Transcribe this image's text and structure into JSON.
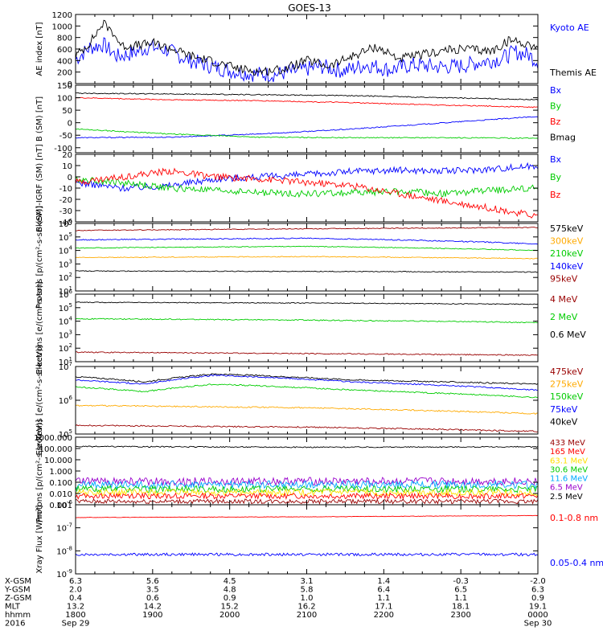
{
  "title": "GOES-13",
  "colors": {
    "black": "#000000",
    "blue": "#0000ff",
    "red": "#ff0000",
    "green": "#00cc00",
    "orange": "#ffaa00",
    "darkred": "#990000",
    "cyan": "#00aaff",
    "yellow": "#ffe000",
    "purple": "#9900cc"
  },
  "chart_data": [
    {
      "id": "ae",
      "type": "line",
      "ylabel": "AE index [nT]",
      "yscale": "linear",
      "ylim": [
        0,
        1200
      ],
      "yticks": [
        "0",
        "200",
        "400",
        "600",
        "800",
        "1000",
        "1200"
      ],
      "legend": [
        "Kyoto AE",
        "Themis AE"
      ],
      "series": [
        {
          "name": "Kyoto AE",
          "color": "blue",
          "t": [
            0,
            0.03,
            0.06,
            0.09,
            0.12,
            0.16,
            0.2,
            0.24,
            0.28,
            0.33,
            0.38,
            0.43,
            0.48,
            0.53,
            0.58,
            0.63,
            0.68,
            0.73,
            0.78,
            0.83,
            0.88,
            0.92,
            0.95,
            0.98,
            1.0
          ],
          "values": [
            420,
            620,
            680,
            470,
            520,
            640,
            580,
            420,
            330,
            230,
            170,
            160,
            220,
            300,
            220,
            330,
            240,
            330,
            290,
            300,
            380,
            430,
            550,
            500,
            380
          ],
          "noise": 70
        },
        {
          "name": "Themis AE",
          "color": "black",
          "t": [
            0,
            0.03,
            0.06,
            0.08,
            0.1,
            0.13,
            0.17,
            0.21,
            0.25,
            0.3,
            0.35,
            0.4,
            0.45,
            0.5,
            0.55,
            0.6,
            0.65,
            0.7,
            0.75,
            0.8,
            0.85,
            0.9,
            0.94,
            0.97,
            1.0
          ],
          "values": [
            480,
            700,
            1050,
            900,
            650,
            660,
            700,
            600,
            480,
            380,
            260,
            210,
            250,
            400,
            300,
            480,
            640,
            430,
            500,
            580,
            600,
            560,
            760,
            700,
            640
          ],
          "noise": 40
        }
      ]
    },
    {
      "id": "bsm",
      "type": "line",
      "ylabel": "B (SM) [nT]",
      "yscale": "linear",
      "ylim": [
        -120,
        150
      ],
      "yticks": [
        "-100",
        "-50",
        "0",
        "50",
        "100",
        "150"
      ],
      "legend": [
        "Bx",
        "By",
        "Bz",
        "Bmag"
      ],
      "series": [
        {
          "name": "Bx",
          "color": "blue",
          "t": [
            0,
            0.2,
            0.4,
            0.6,
            0.8,
            1.0
          ],
          "values": [
            -60,
            -58,
            -45,
            -25,
            0,
            25
          ],
          "noise": 2
        },
        {
          "name": "By",
          "color": "green",
          "t": [
            0,
            0.2,
            0.4,
            0.6,
            0.8,
            1.0
          ],
          "values": [
            -25,
            -45,
            -58,
            -60,
            -60,
            -62
          ],
          "noise": 2
        },
        {
          "name": "Bz",
          "color": "red",
          "t": [
            0,
            0.2,
            0.4,
            0.6,
            0.8,
            1.0
          ],
          "values": [
            100,
            92,
            88,
            80,
            70,
            62
          ],
          "noise": 2
        },
        {
          "name": "Bmag",
          "color": "black",
          "t": [
            0,
            0.2,
            0.4,
            0.6,
            0.8,
            1.0
          ],
          "values": [
            118,
            115,
            112,
            108,
            100,
            92
          ],
          "noise": 2
        }
      ]
    },
    {
      "id": "dbsm",
      "type": "line",
      "ylabel": "B (SM)-IGRF (SM) [nT]",
      "yscale": "linear",
      "ylim": [
        -40,
        20
      ],
      "yticks": [
        "-40",
        "-30",
        "-20",
        "-10",
        "0",
        "10",
        "20"
      ],
      "legend": [
        "Bx",
        "By",
        "Bz"
      ],
      "series": [
        {
          "name": "Bx",
          "color": "blue",
          "t": [
            0,
            0.1,
            0.2,
            0.3,
            0.4,
            0.5,
            0.6,
            0.7,
            0.8,
            0.9,
            1.0
          ],
          "values": [
            -5,
            -10,
            -8,
            -2,
            0,
            2,
            5,
            6,
            5,
            7,
            10
          ],
          "noise": 3
        },
        {
          "name": "By",
          "color": "green",
          "t": [
            0,
            0.1,
            0.2,
            0.3,
            0.4,
            0.5,
            0.6,
            0.7,
            0.8,
            0.9,
            1.0
          ],
          "values": [
            -2,
            -5,
            -10,
            -12,
            -14,
            -15,
            -14,
            -13,
            -15,
            -12,
            -10
          ],
          "noise": 3
        },
        {
          "name": "Bz",
          "color": "red",
          "t": [
            0,
            0.1,
            0.2,
            0.3,
            0.4,
            0.5,
            0.6,
            0.7,
            0.8,
            0.9,
            1.0
          ],
          "values": [
            -5,
            0,
            5,
            0,
            -2,
            -5,
            -8,
            -15,
            -22,
            -28,
            -35
          ],
          "noise": 3
        }
      ]
    },
    {
      "id": "protons",
      "type": "line",
      "ylabel": "Protons [p/(cm²-s-sr-keV)]",
      "yscale": "log",
      "ylim": [
        10,
        1000000
      ],
      "ytickexp": [
        1,
        2,
        3,
        4,
        5,
        6
      ],
      "legend": [
        "575keV",
        "300keV",
        "210keV",
        "140keV",
        "95keV"
      ],
      "series": [
        {
          "name": "95keV",
          "color": "darkred",
          "t": [
            0,
            1
          ],
          "values": [
            300000,
            500000
          ],
          "noise": 0.03
        },
        {
          "name": "140keV",
          "color": "blue",
          "t": [
            0,
            0.5,
            1
          ],
          "values": [
            60000,
            80000,
            30000
          ],
          "noise": 0.04
        },
        {
          "name": "210keV",
          "color": "green",
          "t": [
            0,
            0.5,
            1
          ],
          "values": [
            15000,
            20000,
            10000
          ],
          "noise": 0.03
        },
        {
          "name": "300keV",
          "color": "orange",
          "t": [
            0,
            0.5,
            1
          ],
          "values": [
            3000,
            3500,
            2500
          ],
          "noise": 0.03
        },
        {
          "name": "575keV",
          "color": "black",
          "t": [
            0,
            0.5,
            1
          ],
          "values": [
            300,
            280,
            250
          ],
          "noise": 0.03
        }
      ]
    },
    {
      "id": "electrons_hi",
      "type": "line",
      "ylabel": "Electrons [e/(cm²-s-sr)]",
      "yscale": "log",
      "ylim": [
        10,
        1000000
      ],
      "ytickexp": [
        1,
        2,
        3,
        4,
        5,
        6
      ],
      "legend": [
        "4 MeV",
        "2 MeV",
        "0.6 MeV"
      ],
      "series": [
        {
          "name": "0.6 MeV",
          "color": "black",
          "t": [
            0,
            0.5,
            1
          ],
          "values": [
            250000,
            220000,
            180000
          ],
          "noise": 0.03
        },
        {
          "name": "2 MeV",
          "color": "green",
          "t": [
            0,
            0.5,
            1
          ],
          "values": [
            15000,
            12000,
            8000
          ],
          "noise": 0.04
        },
        {
          "name": "4 MeV",
          "color": "darkred",
          "t": [
            0,
            0.5,
            1
          ],
          "values": [
            50,
            40,
            30
          ],
          "noise": 0.04
        }
      ]
    },
    {
      "id": "electrons_lo",
      "type": "line",
      "ylabel": "Electrons [e/(cm²-s-sr-keV)]",
      "yscale": "log",
      "ylim": [
        100000,
        10000000
      ],
      "ytickexp": [
        5,
        6,
        7
      ],
      "legend": [
        "475keV",
        "275keV",
        "150keV",
        "75keV",
        "40keV"
      ],
      "series": [
        {
          "name": "40keV",
          "color": "black",
          "t": [
            0,
            0.15,
            0.3,
            0.6,
            1
          ],
          "values": [
            5000000,
            3500000,
            6000000,
            4000000,
            3000000
          ],
          "noise": 0.02
        },
        {
          "name": "75keV",
          "color": "blue",
          "t": [
            0,
            0.15,
            0.3,
            0.6,
            1
          ],
          "values": [
            4000000,
            3000000,
            5500000,
            3500000,
            2000000
          ],
          "noise": 0.02
        },
        {
          "name": "150keV",
          "color": "green",
          "t": [
            0,
            0.15,
            0.3,
            0.6,
            1
          ],
          "values": [
            2500000,
            1800000,
            3000000,
            2000000,
            1200000
          ],
          "noise": 0.02
        },
        {
          "name": "275keV",
          "color": "orange",
          "t": [
            0,
            0.5,
            1
          ],
          "values": [
            700000,
            600000,
            400000
          ],
          "noise": 0.02
        },
        {
          "name": "475keV",
          "color": "darkred",
          "t": [
            0,
            0.5,
            1
          ],
          "values": [
            180000,
            160000,
            120000
          ],
          "noise": 0.02
        }
      ]
    },
    {
      "id": "protons_hi",
      "type": "line",
      "ylabel": "Protons [p/(cm²-s-sr-keV)]",
      "yscale": "log",
      "ylim": [
        0.001,
        1000
      ],
      "yticks": [
        "0.001",
        "0.010",
        "0.100",
        "1.000",
        "10.000",
        "100.000",
        "1000.000"
      ],
      "legend": [
        "433 MeV",
        "165 MeV",
        "63.1 MeV",
        "30.6 MeV",
        "11.6 MeV",
        "6.5 MeV",
        "2.5 MeV"
      ],
      "series": [
        {
          "name": "2.5 MeV",
          "color": "black",
          "t": [
            0,
            0.5,
            1
          ],
          "values": [
            150,
            130,
            140
          ],
          "noise": 0.05
        },
        {
          "name": "6.5 MeV",
          "color": "purple",
          "t": [
            0,
            1
          ],
          "values": [
            0.12,
            0.12
          ],
          "noise": 0.35
        },
        {
          "name": "11.6 MeV",
          "color": "cyan",
          "t": [
            0,
            1
          ],
          "values": [
            0.06,
            0.06
          ],
          "noise": 0.35
        },
        {
          "name": "30.6 MeV",
          "color": "green",
          "t": [
            0,
            1
          ],
          "values": [
            0.025,
            0.025
          ],
          "noise": 0.3
        },
        {
          "name": "63.1 MeV",
          "color": "yellow",
          "t": [
            0,
            1
          ],
          "values": [
            0.012,
            0.012
          ],
          "noise": 0.3
        },
        {
          "name": "165 MeV",
          "color": "red",
          "t": [
            0,
            1
          ],
          "values": [
            0.006,
            0.006
          ],
          "noise": 0.25
        },
        {
          "name": "433 MeV",
          "color": "darkred",
          "t": [
            0,
            1
          ],
          "values": [
            0.002,
            0.002
          ],
          "noise": 0.2
        }
      ]
    },
    {
      "id": "xray",
      "type": "line",
      "ylabel": "Xray Flux [W/m²]",
      "yscale": "log",
      "ylim": [
        1e-09,
        1e-06
      ],
      "ytickexp": [
        -9,
        -8,
        -7,
        -6
      ],
      "legend": [
        "0.1-0.8 nm",
        "0.05-0.4 nm"
      ],
      "series": [
        {
          "name": "0.1-0.8 nm",
          "color": "red",
          "t": [
            0,
            0.5,
            1
          ],
          "values": [
            2.8e-07,
            3e-07,
            3.4e-07
          ],
          "noise": 0.01
        },
        {
          "name": "0.05-0.4 nm",
          "color": "blue",
          "t": [
            0,
            1
          ],
          "values": [
            7e-09,
            7e-09
          ],
          "noise": 0.06
        }
      ]
    }
  ],
  "xaxis": {
    "row_labels": [
      "X-GSM",
      "Y-GSM",
      "Z-GSM",
      "MLT",
      "hhmm",
      "2016"
    ],
    "columns": [
      {
        "values": [
          "6.3",
          "2.0",
          "0.4",
          "13.2",
          "1800",
          "Sep 29"
        ]
      },
      {
        "values": [
          "5.6",
          "3.5",
          "0.6",
          "14.2",
          "1900",
          ""
        ]
      },
      {
        "values": [
          "4.5",
          "4.8",
          "0.9",
          "15.2",
          "2000",
          ""
        ]
      },
      {
        "values": [
          "3.1",
          "5.8",
          "1.0",
          "16.2",
          "2100",
          ""
        ]
      },
      {
        "values": [
          "1.4",
          "6.4",
          "1.1",
          "17.1",
          "2200",
          ""
        ]
      },
      {
        "values": [
          "-0.3",
          "6.5",
          "1.1",
          "18.1",
          "2300",
          ""
        ]
      },
      {
        "values": [
          "-2.0",
          "6.3",
          "0.9",
          "19.1",
          "0000",
          "Sep 30"
        ]
      }
    ]
  }
}
